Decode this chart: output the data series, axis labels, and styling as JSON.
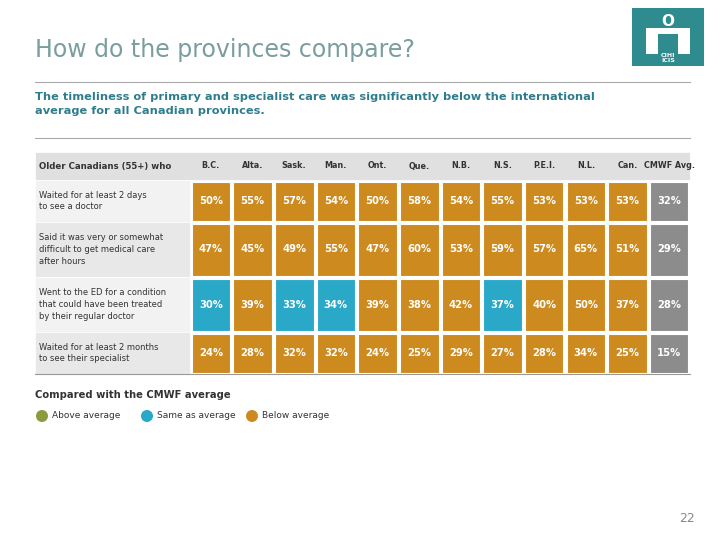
{
  "title": "How do the provinces compare?",
  "subtitle": "The timeliness of primary and specialist care was significantly below the international\naverage for all Canadian provinces.",
  "background_color": "#ffffff",
  "title_color": "#7a9e9f",
  "subtitle_color": "#2e7d8c",
  "header_row": [
    "Older Canadians (55+) who",
    "B.C.",
    "Alta.",
    "Sask.",
    "Man.",
    "Ont.",
    "Que.",
    "N.B.",
    "N.S.",
    "P.E.I.",
    "N.L.",
    "Can.",
    "CMWF Avg."
  ],
  "rows": [
    {
      "label": "Waited for at least 2 days\nto see a doctor",
      "values": [
        "50%",
        "55%",
        "57%",
        "54%",
        "50%",
        "58%",
        "54%",
        "55%",
        "53%",
        "53%",
        "53%",
        "32%"
      ],
      "colors": [
        "#cd8a1e",
        "#cd8a1e",
        "#cd8a1e",
        "#cd8a1e",
        "#cd8a1e",
        "#cd8a1e",
        "#cd8a1e",
        "#cd8a1e",
        "#cd8a1e",
        "#cd8a1e",
        "#cd8a1e",
        "#8c8c8c"
      ]
    },
    {
      "label": "Said it was very or somewhat\ndifficult to get medical care\nafter hours",
      "values": [
        "47%",
        "45%",
        "49%",
        "55%",
        "47%",
        "60%",
        "53%",
        "59%",
        "57%",
        "65%",
        "51%",
        "29%"
      ],
      "colors": [
        "#cd8a1e",
        "#cd8a1e",
        "#cd8a1e",
        "#cd8a1e",
        "#cd8a1e",
        "#cd8a1e",
        "#cd8a1e",
        "#cd8a1e",
        "#cd8a1e",
        "#cd8a1e",
        "#cd8a1e",
        "#8c8c8c"
      ]
    },
    {
      "label": "Went to the ED for a condition\nthat could have been treated\nby their regular doctor",
      "values": [
        "30%",
        "39%",
        "33%",
        "34%",
        "39%",
        "38%",
        "42%",
        "37%",
        "40%",
        "50%",
        "37%",
        "28%"
      ],
      "colors": [
        "#29a8c8",
        "#cd8a1e",
        "#29a8c8",
        "#29a8c8",
        "#cd8a1e",
        "#cd8a1e",
        "#cd8a1e",
        "#29a8c8",
        "#cd8a1e",
        "#cd8a1e",
        "#cd8a1e",
        "#8c8c8c"
      ]
    },
    {
      "label": "Waited for at least 2 months\nto see their specialist",
      "values": [
        "24%",
        "28%",
        "32%",
        "32%",
        "24%",
        "25%",
        "29%",
        "27%",
        "28%",
        "34%",
        "25%",
        "15%"
      ],
      "colors": [
        "#cd8a1e",
        "#cd8a1e",
        "#cd8a1e",
        "#cd8a1e",
        "#cd8a1e",
        "#cd8a1e",
        "#cd8a1e",
        "#cd8a1e",
        "#cd8a1e",
        "#cd8a1e",
        "#cd8a1e",
        "#8c8c8c"
      ]
    }
  ],
  "legend_items": [
    {
      "label": "Above average",
      "color": "#8c9a3e"
    },
    {
      "label": "Same as average",
      "color": "#29a8c8"
    },
    {
      "label": "Below average",
      "color": "#cd8a1e"
    }
  ],
  "page_number": "22",
  "table_header_bg": "#e0e0e0",
  "row_bg_even": "#f2f2f2",
  "row_bg_odd": "#e8e8e8"
}
